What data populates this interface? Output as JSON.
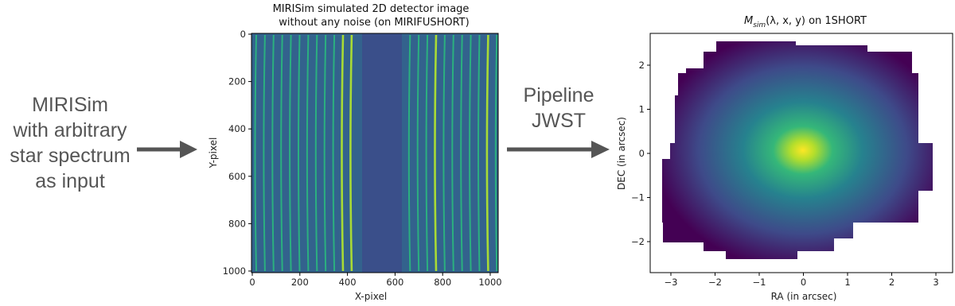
{
  "input": {
    "lines": [
      "MIRISim",
      "with arbitrary",
      "star spectrum",
      "as input"
    ]
  },
  "detector_plot": {
    "title_lines": [
      "MIRISim simulated 2D detector image",
      "without any noise (on MIRIFUSHORT)"
    ],
    "x_label": "X-pixel",
    "y_label": "Y-pixel",
    "x_ticks": [
      "0",
      "200",
      "400",
      "600",
      "800",
      "1000"
    ],
    "y_ticks": [
      "0",
      "200",
      "400",
      "600",
      "800",
      "1000"
    ]
  },
  "pipeline": {
    "lines": [
      "Pipeline",
      "JWST"
    ]
  },
  "cube_plot": {
    "title_parts": [
      "M",
      "sim",
      "(λ, x, y) on 1SHORT"
    ],
    "x_label": "RA (in arcsec)",
    "y_label": "DEC (in arcsec)",
    "x_ticks": [
      "−3",
      "−2",
      "−1",
      "0",
      "1",
      "2",
      "3"
    ],
    "y_ticks": [
      "2",
      "1",
      "0",
      "−1",
      "−2"
    ]
  }
}
